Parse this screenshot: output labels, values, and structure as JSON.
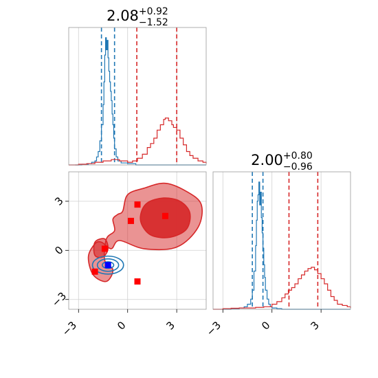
{
  "chart_data": {
    "type": "corner",
    "parameters_shown": 2,
    "axis_range": [
      -3.6,
      4.8
    ],
    "ticks": [
      -3,
      0,
      3
    ],
    "tick_labels": [
      "−3",
      "0",
      "3"
    ],
    "panels": [
      {
        "position": "top-left",
        "kind": "histogram",
        "title": {
          "value": "2.08",
          "sup": "+0.92",
          "sub": "−1.52"
        },
        "series": [
          {
            "color": "#1f77b4",
            "x": [
              -3.2,
              -2.8,
              -2.4,
              -2.2,
              -2.0,
              -1.9,
              -1.8,
              -1.7,
              -1.6,
              -1.5,
              -1.45,
              -1.4,
              -1.35,
              -1.3,
              -1.25,
              -1.2,
              -1.15,
              -1.1,
              -1.05,
              -1.0,
              -0.95,
              -0.9,
              -0.85,
              -0.8,
              -0.7,
              -0.6,
              -0.4,
              0.0,
              0.5,
              1.0
            ],
            "y": [
              0.0,
              0.005,
              0.01,
              0.02,
              0.03,
              0.06,
              0.1,
              0.18,
              0.3,
              0.45,
              0.62,
              0.82,
              0.95,
              0.86,
              0.93,
              0.8,
              0.7,
              0.62,
              0.55,
              0.48,
              0.38,
              0.3,
              0.2,
              0.12,
              0.06,
              0.03,
              0.015,
              0.01,
              0.0,
              0.0
            ],
            "quantile_lines": [
              -1.6,
              -0.8
            ]
          },
          {
            "color": "#d62728",
            "x": [
              -3.6,
              -3.0,
              -2.5,
              -2.0,
              -1.5,
              -1.0,
              -0.5,
              0.0,
              0.3,
              0.6,
              0.9,
              1.2,
              1.4,
              1.6,
              1.8,
              2.0,
              2.2,
              2.3,
              2.5,
              2.7,
              2.8,
              3.0,
              3.2,
              3.4,
              3.6,
              3.8,
              4.0,
              4.3,
              4.6,
              4.8
            ],
            "y": [
              0.0,
              0.005,
              0.01,
              0.02,
              0.03,
              0.04,
              0.03,
              0.02,
              0.03,
              0.05,
              0.08,
              0.13,
              0.16,
              0.2,
              0.26,
              0.3,
              0.34,
              0.35,
              0.33,
              0.3,
              0.28,
              0.26,
              0.2,
              0.15,
              0.1,
              0.07,
              0.05,
              0.03,
              0.02,
              0.01
            ],
            "quantile_lines": [
              0.56,
              3.0
            ]
          }
        ]
      },
      {
        "position": "bottom-right",
        "kind": "histogram",
        "title": {
          "value": "2.00",
          "sup": "+0.80",
          "sub": "−0.96"
        },
        "series": [
          {
            "color": "#1f77b4",
            "x": [
              -3.0,
              -2.5,
              -2.0,
              -1.7,
              -1.5,
              -1.3,
              -1.2,
              -1.1,
              -1.0,
              -0.95,
              -0.9,
              -0.85,
              -0.8,
              -0.75,
              -0.7,
              -0.65,
              -0.6,
              -0.55,
              -0.5,
              -0.45,
              -0.4,
              -0.3,
              -0.2,
              -0.1,
              0.0,
              0.3,
              0.6,
              1.0
            ],
            "y": [
              0.0,
              0.005,
              0.01,
              0.02,
              0.04,
              0.08,
              0.15,
              0.3,
              0.5,
              0.7,
              0.85,
              0.9,
              1.0,
              0.82,
              0.92,
              0.72,
              0.6,
              0.48,
              0.35,
              0.25,
              0.15,
              0.08,
              0.04,
              0.02,
              0.01,
              0.005,
              0.0,
              0.0
            ],
            "quantile_lines": [
              -1.2,
              -0.55
            ]
          },
          {
            "color": "#d62728",
            "x": [
              -3.6,
              -3.0,
              -2.5,
              -2.0,
              -1.5,
              -1.0,
              -0.5,
              0.0,
              0.3,
              0.6,
              0.8,
              1.0,
              1.2,
              1.4,
              1.6,
              1.8,
              2.0,
              2.2,
              2.4,
              2.6,
              2.8,
              3.0,
              3.2,
              3.4,
              3.6,
              3.8,
              4.0,
              4.3,
              4.6,
              4.8
            ],
            "y": [
              0.0,
              0.005,
              0.008,
              0.01,
              0.01,
              0.015,
              0.02,
              0.04,
              0.06,
              0.09,
              0.12,
              0.15,
              0.17,
              0.2,
              0.24,
              0.27,
              0.3,
              0.32,
              0.33,
              0.31,
              0.28,
              0.24,
              0.2,
              0.15,
              0.1,
              0.07,
              0.04,
              0.03,
              0.02,
              0.01
            ],
            "quantile_lines": [
              1.04,
              2.8
            ]
          }
        ]
      },
      {
        "position": "bottom-left",
        "kind": "2d-contour",
        "red_regions": [
          {
            "level": "outer",
            "color": "#d62728",
            "fill_opacity": 0.5,
            "points": [
              [
                -0.3,
                2.4
              ],
              [
                0.0,
                3.4
              ],
              [
                1.0,
                3.8
              ],
              [
                2.3,
                4.1
              ],
              [
                3.6,
                3.6
              ],
              [
                4.5,
                2.8
              ],
              [
                4.3,
                1.4
              ],
              [
                3.0,
                0.2
              ],
              [
                1.0,
                0.1
              ],
              [
                -0.5,
                0.6
              ],
              [
                -1.0,
                0.1
              ],
              [
                -1.6,
                0.5
              ],
              [
                -2.0,
                0.4
              ],
              [
                -2.4,
                -0.4
              ],
              [
                -2.1,
                -1.5
              ],
              [
                -1.3,
                -1.9
              ],
              [
                -0.9,
                -1.2
              ],
              [
                -1.4,
                -0.6
              ],
              [
                -1.3,
                0.7
              ],
              [
                -0.8,
                1.2
              ],
              [
                -0.9,
                1.9
              ],
              [
                -0.6,
                2.2
              ]
            ]
          },
          {
            "level": "inner",
            "color": "#d62728",
            "fill_opacity": 0.9,
            "points": [
              [
                0.8,
                2.2
              ],
              [
                1.2,
                2.9
              ],
              [
                2.2,
                3.2
              ],
              [
                3.2,
                3.0
              ],
              [
                3.8,
                2.3
              ],
              [
                3.6,
                1.3
              ],
              [
                2.6,
                0.8
              ],
              [
                1.5,
                0.9
              ],
              [
                0.9,
                1.5
              ]
            ]
          },
          {
            "level": "left-lobe",
            "color": "#d62728",
            "fill_opacity": 0.6,
            "points": [
              [
                -2.0,
                0.5
              ],
              [
                -1.4,
                0.7
              ],
              [
                -1.2,
                0.1
              ],
              [
                -1.5,
                -0.4
              ],
              [
                -2.0,
                -0.3
              ]
            ]
          }
        ],
        "blue_contours": [
          {
            "level": "outer",
            "center": [
              -1.2,
              -0.9
            ],
            "radius": [
              0.95,
              0.55
            ]
          },
          {
            "level": "middle",
            "center": [
              -1.2,
              -0.9
            ],
            "radius": [
              0.65,
              0.38
            ]
          },
          {
            "level": "inner",
            "center": [
              -1.2,
              -0.9
            ],
            "radius": [
              0.35,
              0.2
            ]
          }
        ],
        "red_markers": [
          [
            0.6,
            2.8
          ],
          [
            2.3,
            2.1
          ],
          [
            0.2,
            1.8
          ],
          [
            -1.4,
            0.1
          ],
          [
            -2.0,
            -1.3
          ],
          [
            0.6,
            -1.9
          ]
        ],
        "blue_markers": [
          [
            -1.2,
            -0.9
          ]
        ]
      }
    ],
    "grid": "on (light gray, at ticks)",
    "legend": "none"
  }
}
